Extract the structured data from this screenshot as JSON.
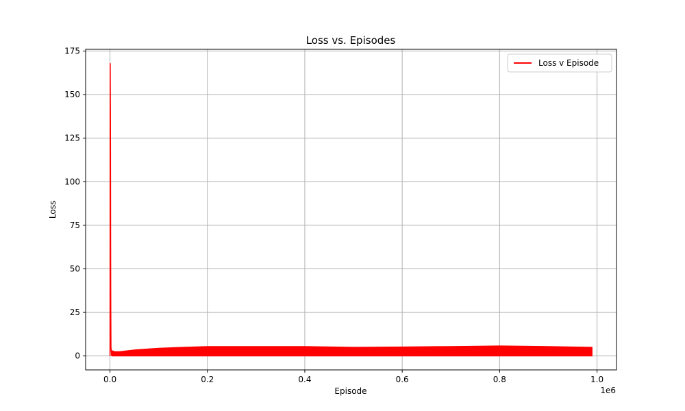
{
  "chart_data": {
    "type": "line",
    "title": "Loss vs. Episodes",
    "xlabel": "Episode",
    "ylabel": "Loss",
    "x_offset_label": "1e6",
    "xlim": [
      -0.05,
      1.04
    ],
    "ylim": [
      -8,
      176
    ],
    "xticks": [
      0.0,
      0.2,
      0.4,
      0.6,
      0.8,
      1.0
    ],
    "xtick_labels": [
      "0.0",
      "0.2",
      "0.4",
      "0.6",
      "0.8",
      "1.0"
    ],
    "yticks": [
      0,
      25,
      50,
      75,
      100,
      125,
      150,
      175
    ],
    "ytick_labels": [
      "0",
      "25",
      "50",
      "75",
      "100",
      "125",
      "150",
      "175"
    ],
    "grid": true,
    "legend_position": "upper-right",
    "series": [
      {
        "name": "Loss v Episode",
        "color": "#ff0000",
        "x": [
          0.0,
          0.0005,
          0.001,
          0.0015,
          0.002,
          0.003,
          0.005,
          0.01,
          0.02,
          0.05,
          0.1,
          0.15,
          0.2,
          0.3,
          0.4,
          0.5,
          0.6,
          0.7,
          0.8,
          0.9,
          0.99
        ],
        "y": [
          0,
          168,
          120,
          40,
          5,
          1,
          0.5,
          0.5,
          1,
          2,
          2.5,
          2.8,
          3,
          3,
          3,
          2.8,
          3,
          3,
          3,
          3,
          3
        ],
        "band_low": [
          0,
          168,
          120,
          40,
          5,
          0.2,
          0,
          0,
          0,
          0,
          0,
          0,
          0,
          0,
          0,
          0,
          0,
          0,
          0,
          0,
          0
        ],
        "band_high": [
          0,
          168,
          120,
          40,
          5,
          3,
          3,
          2.5,
          2.5,
          3.5,
          4.5,
          5,
          5.5,
          5.5,
          5.5,
          5,
          5.2,
          5.5,
          5.8,
          5.5,
          5
        ]
      }
    ]
  }
}
